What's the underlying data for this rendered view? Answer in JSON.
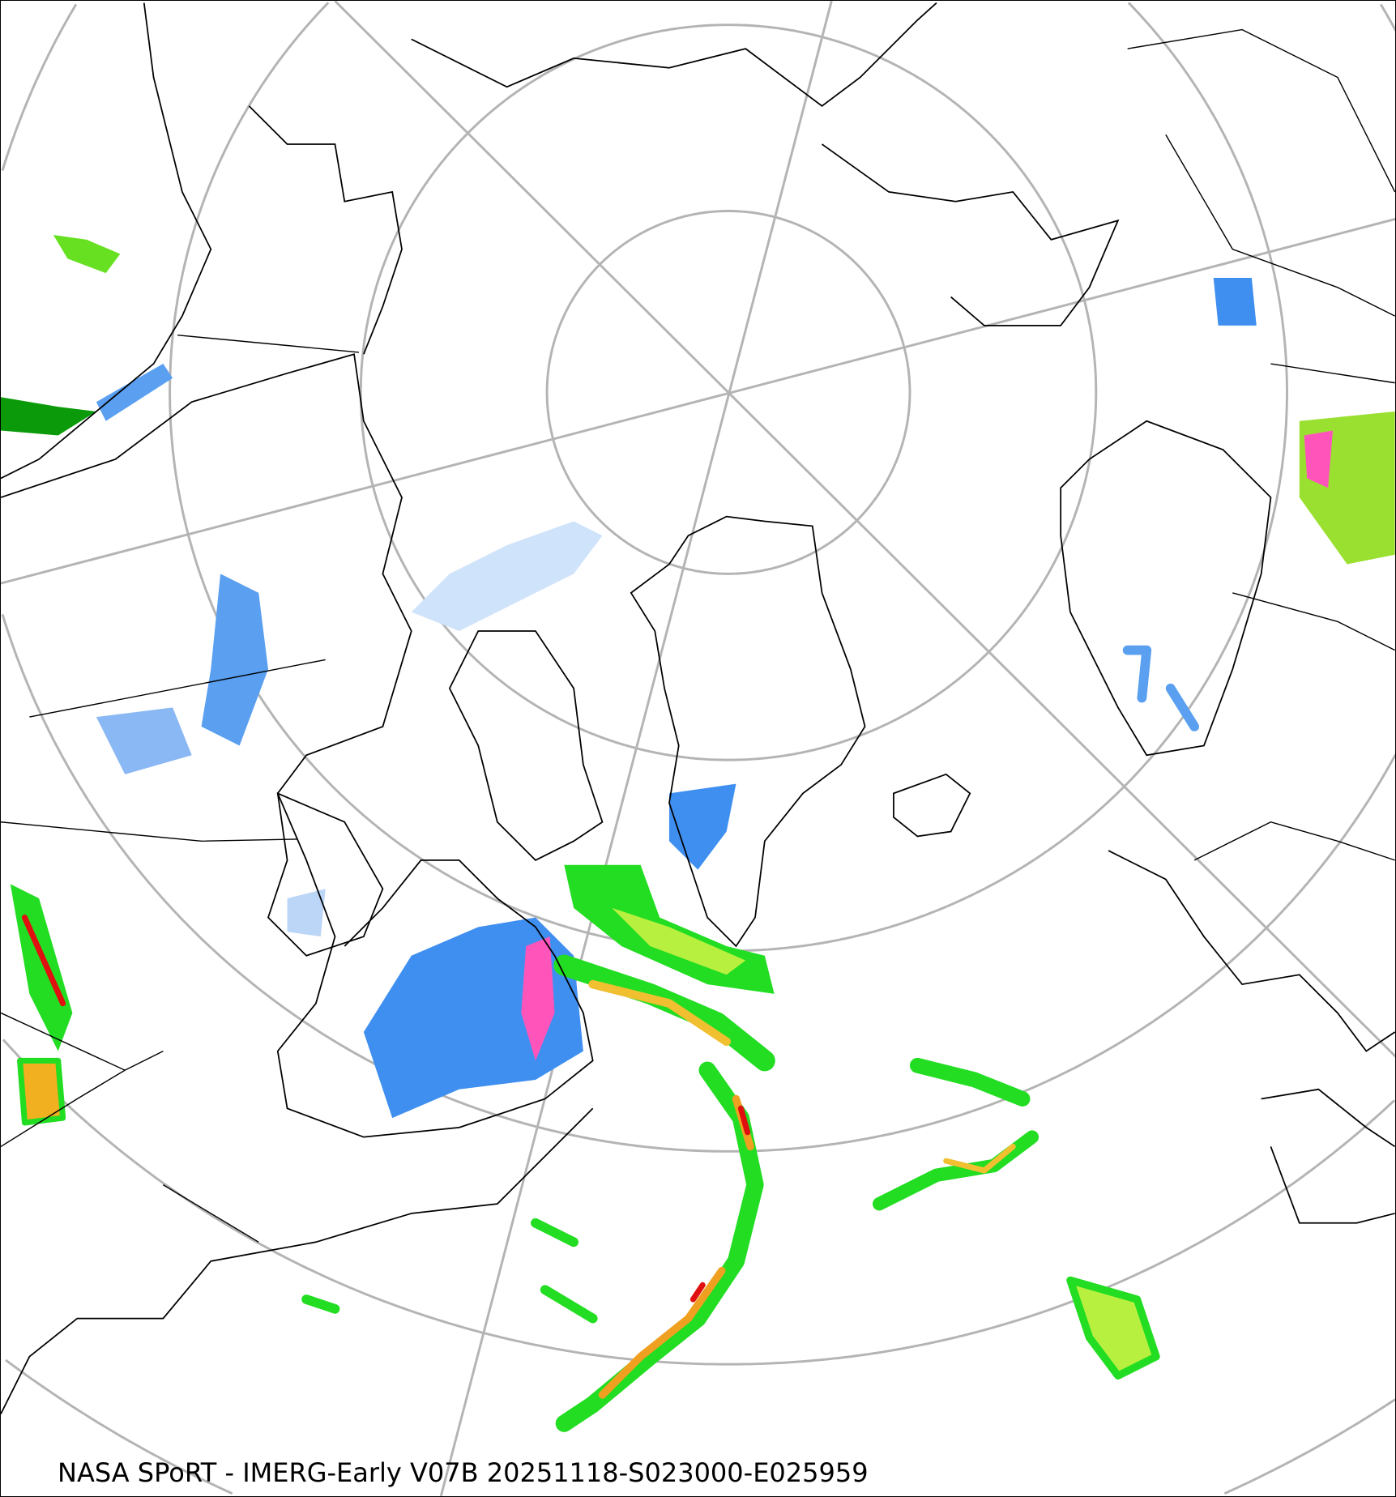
{
  "map": {
    "caption": "NASA SPoRT - IMERG-Early V07B 20251118-S023000-E025959",
    "projection": "north-polar-stereographic",
    "colors": {
      "graticule": "#b4b4b4",
      "coastline": "#000000",
      "precip_light_blue": "#cfe3fb",
      "precip_blue": "#3f8ff0",
      "precip_dark_green": "#0a7a0a",
      "precip_green": "#22dd22",
      "precip_lime": "#b8f040",
      "precip_yellow": "#f0e030",
      "precip_red": "#e01010",
      "precip_pink": "#ff55bb"
    }
  }
}
